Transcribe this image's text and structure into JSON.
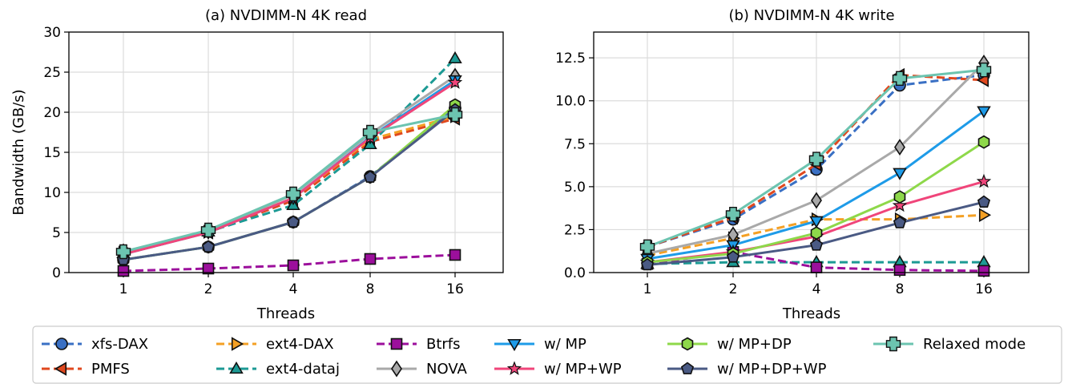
{
  "chart_data": [
    {
      "type": "line",
      "title": "(a) NVDIMM-N 4K read",
      "xlabel": "Threads",
      "ylabel": "Bandwidth (GB/s)",
      "x_scale": "log2",
      "categories": [
        "1",
        "2",
        "4",
        "8",
        "16"
      ],
      "ylim": [
        0,
        30
      ],
      "yticks": [
        "0",
        "5",
        "10",
        "15",
        "20",
        "25",
        "30"
      ],
      "grid": true,
      "series": [
        {
          "name": "xfs-DAX",
          "values": [
            1.6,
            3.2,
            6.3,
            12.0,
            20.5
          ]
        },
        {
          "name": "PMFS",
          "values": [
            2.3,
            5.0,
            9.0,
            16.3,
            19.2
          ]
        },
        {
          "name": "ext4-DAX",
          "values": [
            2.5,
            5.1,
            9.3,
            16.6,
            19.5
          ]
        },
        {
          "name": "ext4-dataj",
          "values": [
            2.4,
            5.1,
            8.4,
            16.0,
            26.7
          ]
        },
        {
          "name": "Btrfs",
          "values": [
            0.2,
            0.5,
            0.9,
            1.7,
            2.2
          ]
        },
        {
          "name": "NOVA",
          "values": [
            2.6,
            5.2,
            9.7,
            17.3,
            24.5
          ]
        },
        {
          "name": "w/ MP",
          "values": [
            2.3,
            5.0,
            9.3,
            16.9,
            24.0
          ]
        },
        {
          "name": "w/ MP+WP",
          "values": [
            2.3,
            5.0,
            9.3,
            16.8,
            23.7
          ]
        },
        {
          "name": "w/ MP+DP",
          "values": [
            1.6,
            3.2,
            6.3,
            11.9,
            20.9
          ]
        },
        {
          "name": "w/ MP+DP+WP",
          "values": [
            1.6,
            3.2,
            6.3,
            11.9,
            20.3
          ]
        },
        {
          "name": "Relaxed mode",
          "values": [
            2.6,
            5.3,
            9.8,
            17.5,
            19.7
          ]
        }
      ]
    },
    {
      "type": "line",
      "title": "(b) NVDIMM-N 4K write",
      "xlabel": "Threads",
      "ylabel": "",
      "x_scale": "log2",
      "categories": [
        "1",
        "2",
        "4",
        "8",
        "16"
      ],
      "ylim": [
        0,
        14
      ],
      "yticks": [
        "0.0",
        "2.5",
        "5.0",
        "7.5",
        "10.0",
        "12.5"
      ],
      "grid": true,
      "series": [
        {
          "name": "xfs-DAX",
          "values": [
            1.5,
            3.1,
            6.0,
            10.9,
            11.5
          ]
        },
        {
          "name": "PMFS",
          "values": [
            1.5,
            3.2,
            6.3,
            11.5,
            11.2
          ]
        },
        {
          "name": "ext4-DAX",
          "values": [
            1.0,
            2.0,
            3.1,
            3.1,
            3.35
          ]
        },
        {
          "name": "ext4-dataj",
          "values": [
            0.5,
            0.6,
            0.6,
            0.6,
            0.6
          ]
        },
        {
          "name": "Btrfs",
          "values": [
            0.5,
            1.2,
            0.3,
            0.15,
            0.1
          ]
        },
        {
          "name": "NOVA",
          "values": [
            1.1,
            2.2,
            4.2,
            7.3,
            12.2
          ]
        },
        {
          "name": "w/ MP",
          "values": [
            0.8,
            1.6,
            3.0,
            5.8,
            9.4
          ]
        },
        {
          "name": "w/ MP+WP",
          "values": [
            0.6,
            1.2,
            2.1,
            3.9,
            5.3
          ]
        },
        {
          "name": "w/ MP+DP",
          "values": [
            0.6,
            1.1,
            2.3,
            4.4,
            7.6
          ]
        },
        {
          "name": "w/ MP+DP+WP",
          "values": [
            0.45,
            0.9,
            1.6,
            2.9,
            4.1
          ]
        },
        {
          "name": "Relaxed mode",
          "values": [
            1.5,
            3.4,
            6.6,
            11.3,
            11.8
          ]
        }
      ]
    }
  ],
  "legend": {
    "placement": "bottom",
    "entries": [
      {
        "label": "xfs-DAX",
        "color": "#3a70c4",
        "marker": "circle",
        "dashed": true
      },
      {
        "label": "PMFS",
        "color": "#e0481e",
        "marker": "triangle-left",
        "dashed": true
      },
      {
        "label": "ext4-DAX",
        "color": "#f4a024",
        "marker": "triangle-right",
        "dashed": true
      },
      {
        "label": "ext4-dataj",
        "color": "#1c9a94",
        "marker": "triangle-up",
        "dashed": true
      },
      {
        "label": "Btrfs",
        "color": "#9c0f9c",
        "marker": "square",
        "dashed": true
      },
      {
        "label": "NOVA",
        "color": "#a9a9a9",
        "marker": "diamond",
        "dashed": false
      },
      {
        "label": "w/ MP",
        "color": "#1e9be8",
        "marker": "triangle-down",
        "dashed": false
      },
      {
        "label": "w/ MP+WP",
        "color": "#f0457a",
        "marker": "star",
        "dashed": false
      },
      {
        "label": "w/ MP+DP",
        "color": "#8ed84a",
        "marker": "hexagon",
        "dashed": false
      },
      {
        "label": "w/ MP+DP+WP",
        "color": "#4a5a84",
        "marker": "pentagon",
        "dashed": false
      },
      {
        "label": "Relaxed mode",
        "color": "#6cc4b0",
        "marker": "plus",
        "dashed": false
      }
    ]
  }
}
